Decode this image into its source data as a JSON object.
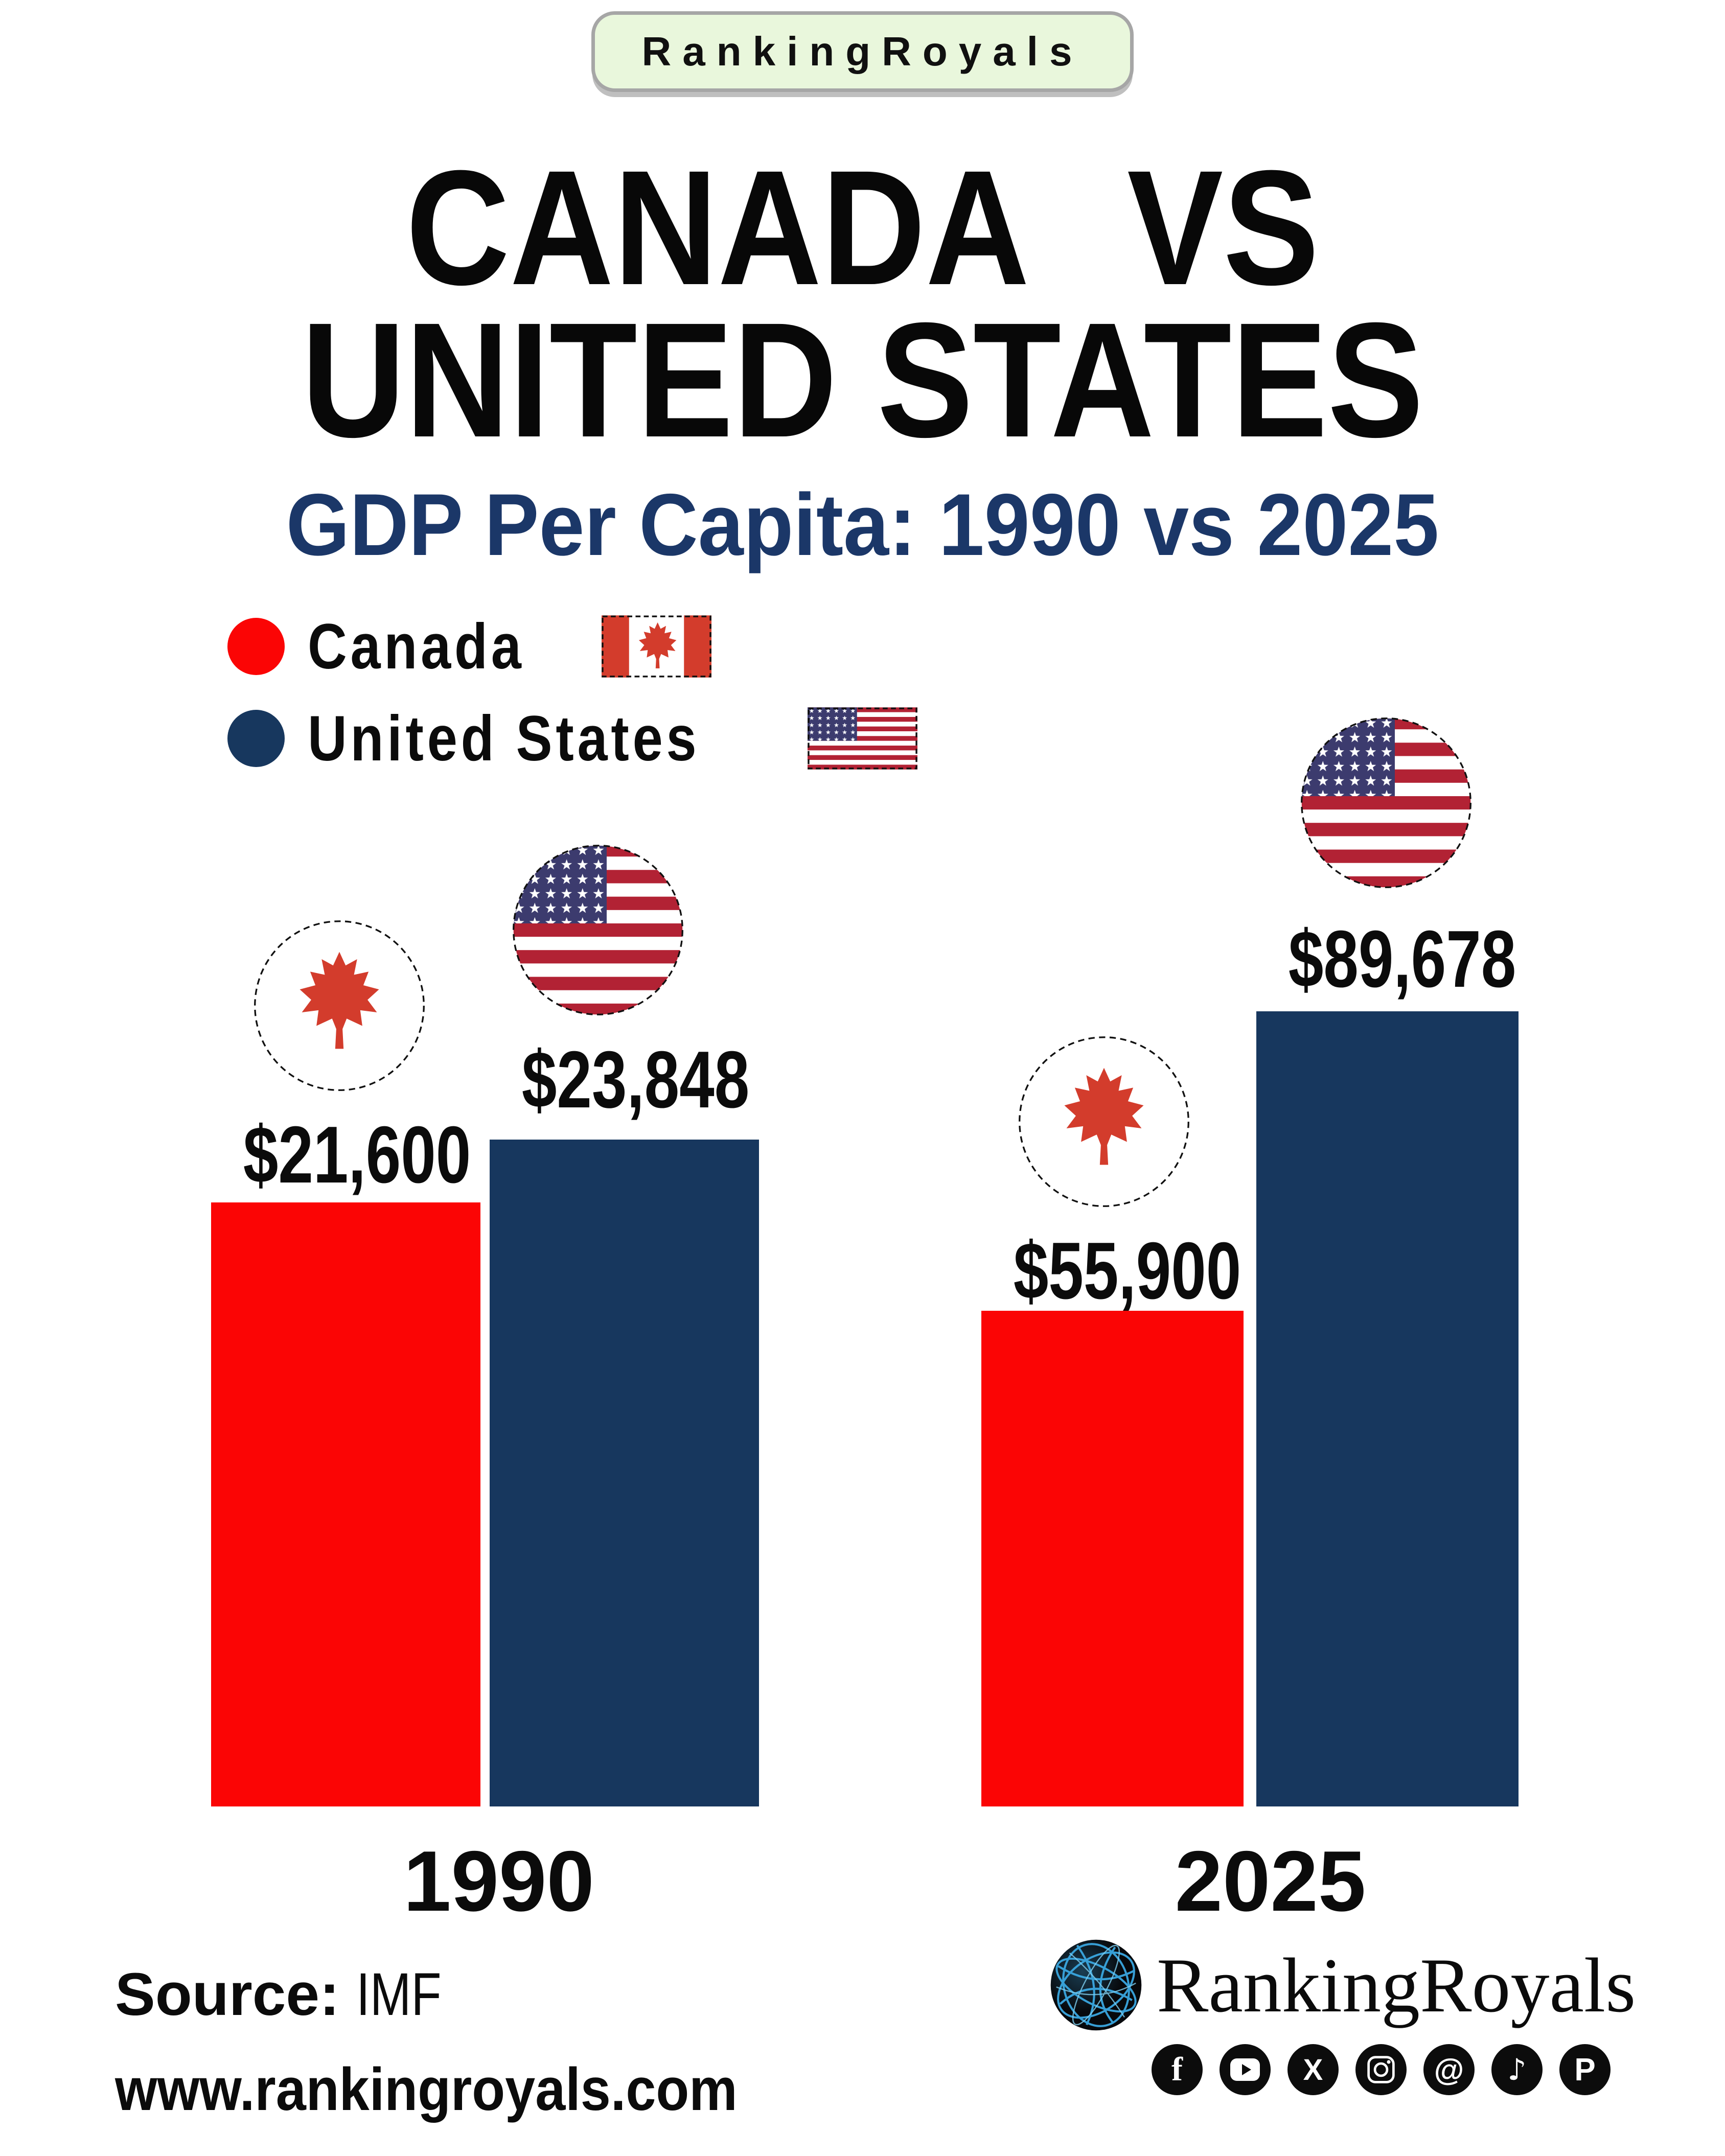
{
  "badge": {
    "label": "RankingRoyals"
  },
  "title": {
    "line1": "CANADA VS",
    "line2": "UNITED STATES"
  },
  "subtitle": "GDP Per Capita: 1990 vs 2025",
  "colors": {
    "canada_red": "#fb0505",
    "us_navy": "#17375e",
    "subtitle_navy": "#1b3768",
    "flag_red": "#d33c2c",
    "stripe_red": "#b22234",
    "canton_blue": "#3c3b6e"
  },
  "legend": {
    "items": [
      {
        "label": "Canada",
        "color": "#fb0505",
        "flag": "canada-flag"
      },
      {
        "label": "United States",
        "color": "#17375e",
        "flag": "us-flag"
      }
    ]
  },
  "chart_data": {
    "type": "bar",
    "title": "Canada vs United States — GDP Per Capita: 1990 vs 2025",
    "categories": [
      "1990",
      "2025"
    ],
    "series": [
      {
        "name": "Canada",
        "color": "#fb0505",
        "values": [
          21600,
          55900
        ],
        "labels": [
          "$21,600",
          "$55,900"
        ]
      },
      {
        "name": "United States",
        "color": "#17375e",
        "values": [
          23848,
          89678
        ],
        "labels": [
          "$23,848",
          "$89,678"
        ]
      }
    ],
    "value_prefix": "$",
    "grid": false,
    "legend_position": "top-left",
    "note": "each year group scaled independently to its tallest bar"
  },
  "footer": {
    "source_label": "Source:",
    "source_value": "IMF",
    "website": "www.rankingroyals.com",
    "brand": "RankingRoyals",
    "social": [
      "facebook",
      "youtube",
      "x",
      "instagram",
      "threads",
      "tiktok",
      "pinterest"
    ]
  }
}
